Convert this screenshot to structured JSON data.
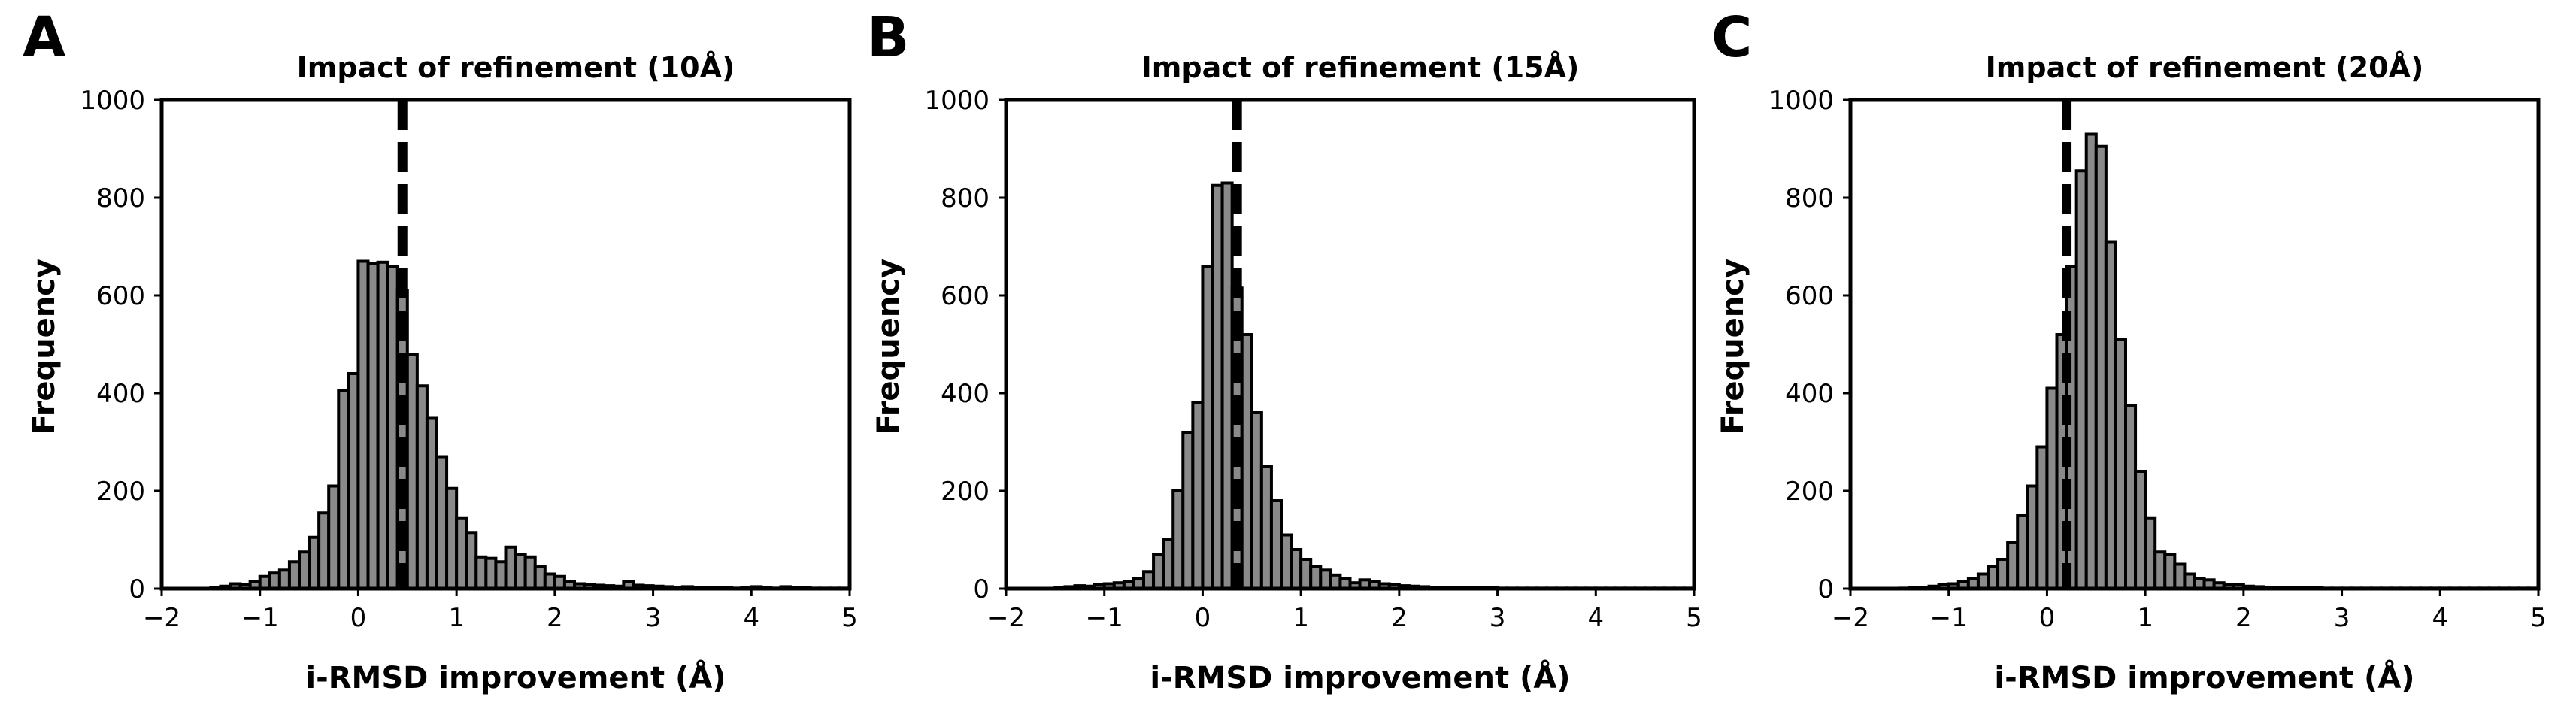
{
  "chart_data": [
    {
      "type": "bar",
      "panel": "A",
      "title": "Impact of refinement (10Å)",
      "xlabel": "i-RMSD improvement (Å)",
      "ylabel": "Frequency",
      "xlim": [
        -2,
        5
      ],
      "ylim": [
        0,
        1000
      ],
      "xticks": [
        "−2",
        "−1",
        "0",
        "1",
        "2",
        "3",
        "4",
        "5"
      ],
      "yticks": [
        "0",
        "200",
        "400",
        "600",
        "800",
        "1000"
      ],
      "grid": false,
      "legend": "none",
      "bin_width": 0.1,
      "bins_start": -1.5,
      "values": [
        2,
        5,
        10,
        8,
        15,
        25,
        32,
        38,
        55,
        75,
        105,
        155,
        210,
        405,
        440,
        670,
        665,
        668,
        660,
        610,
        480,
        415,
        350,
        270,
        205,
        145,
        115,
        65,
        62,
        55,
        85,
        70,
        65,
        45,
        30,
        25,
        15,
        10,
        8,
        7,
        6,
        5,
        15,
        7,
        6,
        5,
        4,
        3,
        4,
        3,
        2,
        3,
        2,
        1,
        2,
        4,
        2,
        1,
        4,
        2,
        2,
        1,
        1,
        1,
        1
      ],
      "mean_line": 0.45,
      "bar_color": "#8a8a8a"
    },
    {
      "type": "bar",
      "panel": "B",
      "title": "Impact of refinement (15Å)",
      "xlabel": "i-RMSD improvement (Å)",
      "ylabel": "Frequency",
      "xlim": [
        -2,
        5
      ],
      "ylim": [
        0,
        1000
      ],
      "xticks": [
        "−2",
        "−1",
        "0",
        "1",
        "2",
        "3",
        "4",
        "5"
      ],
      "yticks": [
        "0",
        "200",
        "400",
        "600",
        "800",
        "1000"
      ],
      "grid": false,
      "legend": "none",
      "bin_width": 0.1,
      "bins_start": -1.5,
      "values": [
        2,
        4,
        6,
        5,
        8,
        10,
        12,
        15,
        20,
        35,
        70,
        100,
        200,
        320,
        380,
        660,
        825,
        830,
        615,
        520,
        360,
        250,
        180,
        110,
        80,
        60,
        45,
        38,
        28,
        20,
        12,
        18,
        15,
        10,
        8,
        6,
        5,
        4,
        3,
        3,
        2,
        2,
        3,
        2,
        2,
        1,
        1,
        1,
        1,
        1,
        1,
        1,
        1,
        1,
        1,
        1,
        1,
        1,
        1,
        1,
        1,
        1,
        1,
        1,
        1
      ],
      "mean_line": 0.35,
      "bar_color": "#8a8a8a"
    },
    {
      "type": "bar",
      "panel": "C",
      "title": "Impact of refinement (20Å)",
      "xlabel": "i-RMSD improvement (Å)",
      "ylabel": "Frequency",
      "xlim": [
        -2,
        5
      ],
      "ylim": [
        0,
        1000
      ],
      "xticks": [
        "−2",
        "−1",
        "0",
        "1",
        "2",
        "3",
        "4",
        "5"
      ],
      "yticks": [
        "0",
        "200",
        "400",
        "600",
        "800",
        "1000"
      ],
      "grid": false,
      "legend": "none",
      "bin_width": 0.1,
      "bins_start": -1.5,
      "values": [
        1,
        2,
        3,
        5,
        8,
        10,
        15,
        20,
        30,
        45,
        60,
        95,
        150,
        210,
        290,
        410,
        520,
        660,
        855,
        930,
        905,
        710,
        510,
        375,
        240,
        145,
        75,
        70,
        50,
        30,
        20,
        18,
        12,
        8,
        8,
        5,
        4,
        3,
        2,
        3,
        3,
        2,
        2,
        1,
        1,
        1,
        1,
        1,
        1,
        1,
        1,
        1,
        1,
        1,
        1,
        1,
        1,
        1,
        1,
        1,
        1,
        1,
        1,
        1,
        1
      ],
      "mean_line": 0.2,
      "bar_color": "#8a8a8a"
    }
  ]
}
